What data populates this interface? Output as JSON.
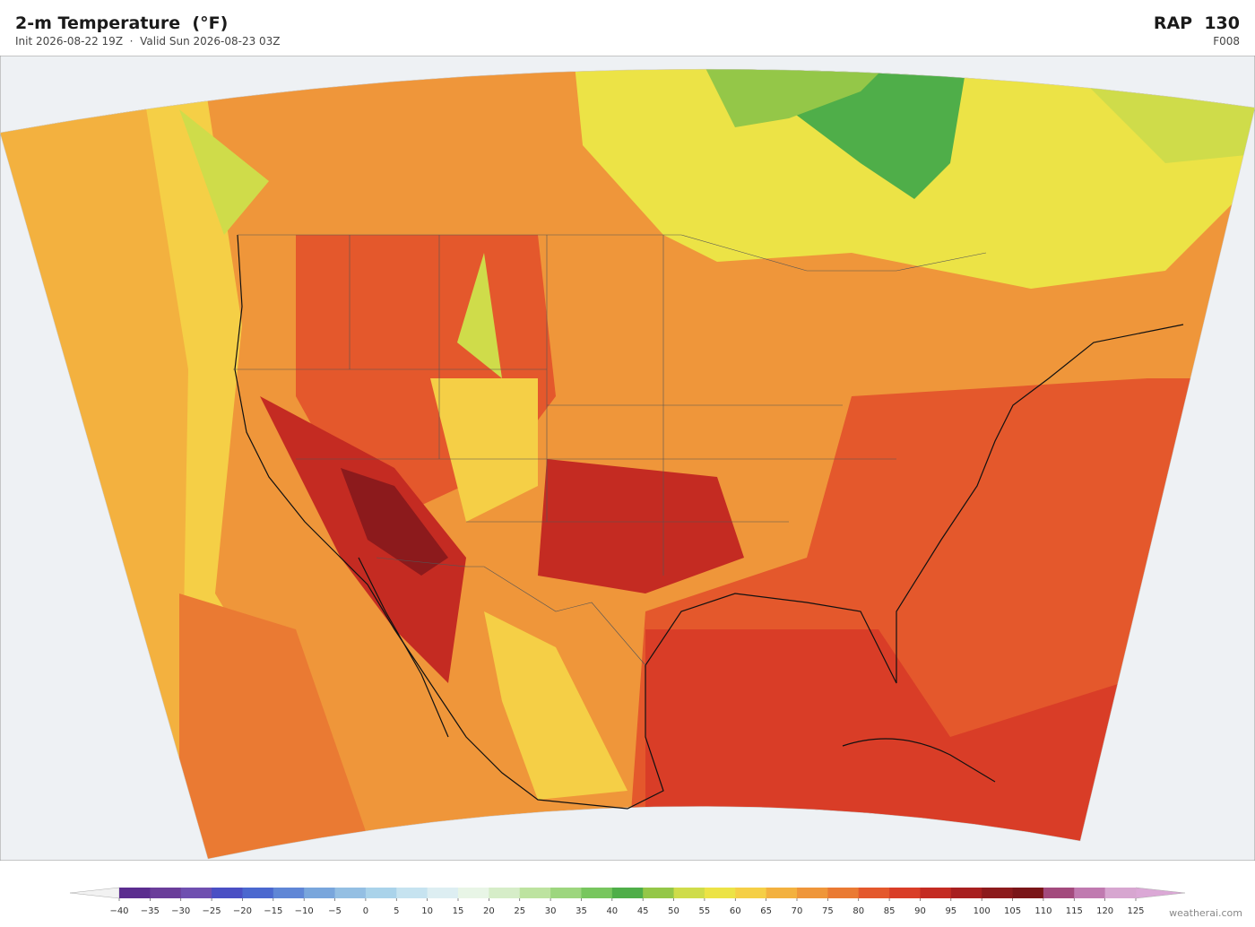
{
  "header": {
    "title": "2-m Temperature  (°F)",
    "subtitle": "Init 2026-08-22 19Z  ·  Valid Sun 2026-08-23 03Z",
    "model": "RAP  130",
    "forecast_hour": "F008"
  },
  "colorbar": {
    "ticks": [
      {
        "value": -40,
        "label": "−40"
      },
      {
        "value": -35,
        "label": "−35"
      },
      {
        "value": -30,
        "label": "−30"
      },
      {
        "value": -25,
        "label": "−25"
      },
      {
        "value": -20,
        "label": "−20"
      },
      {
        "value": -15,
        "label": "−15"
      },
      {
        "value": -10,
        "label": "−10"
      },
      {
        "value": -5,
        "label": "−5"
      },
      0,
      5,
      10,
      15,
      20,
      25,
      30,
      35,
      40,
      45,
      50,
      55,
      60,
      65,
      70,
      75,
      80,
      85,
      90,
      95,
      100,
      105,
      110,
      115,
      120,
      125
    ],
    "colors": [
      "#5b2d8f",
      "#6a3d9a",
      "#6f4fb0",
      "#4a4fc4",
      "#4b68cf",
      "#5f86d6",
      "#79a6dc",
      "#94bfe3",
      "#aad3ea",
      "#c6e3f0",
      "#ddeef2",
      "#e8f5e6",
      "#d6edc8",
      "#bde3a0",
      "#9dd67e",
      "#78c65e",
      "#4fae49",
      "#94c748",
      "#cfdc4a",
      "#ece346",
      "#f5cf46",
      "#f3b13f",
      "#ef963a",
      "#ea7a33",
      "#e4582c",
      "#d93d27",
      "#c42b22",
      "#a81f1f",
      "#8c1a1c",
      "#7a1518",
      "#a34a7d",
      "#c07ab0",
      "#d7a6d0"
    ],
    "extend_colors": [
      "#f2f2f2",
      "#dba8d6"
    ]
  },
  "footer": {
    "credit": "weatherai.com"
  }
}
